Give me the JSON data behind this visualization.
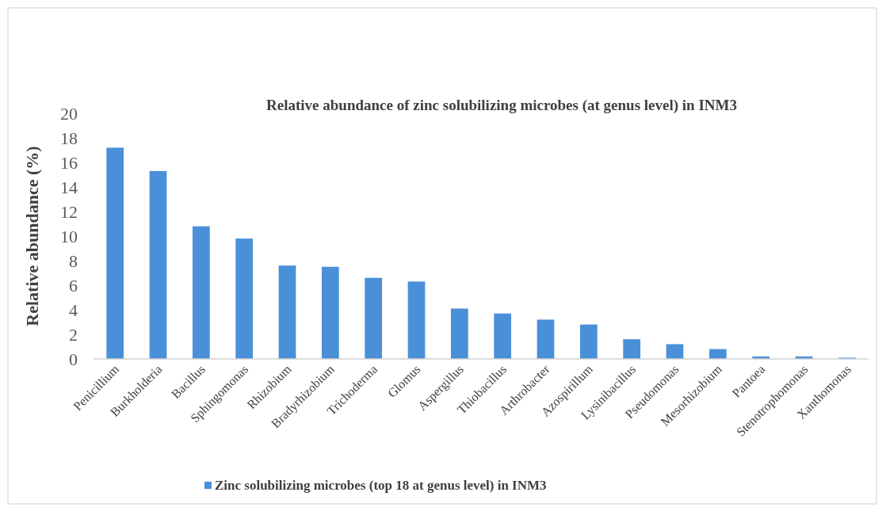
{
  "chart_data": {
    "type": "bar",
    "title": "Relative abundance of zinc solubilizing microbes (at genus level) in INM3",
    "ylabel": "Relative abundance (%)",
    "categories": [
      "Penicillium",
      "Burkholderia",
      "Bacillus",
      "Sphingomonas",
      "Rhizobium",
      "Bradyrhizobium",
      "Trichoderma",
      "Glomus",
      "Aspergillus",
      "Thiobacillus",
      "Arthrobacter",
      "Azospirillum",
      "Lysinibacillus",
      "Pseudomonas",
      "Mesorhizobium",
      "Pantoea",
      "Stenotrophomonas",
      "Xanthomonas"
    ],
    "series": [
      {
        "name": "Zinc solubilizing microbes (top 18 at genus level) in INM3",
        "color": "#4a90d9",
        "values": [
          17.2,
          15.3,
          10.8,
          9.8,
          7.6,
          7.5,
          6.6,
          6.3,
          4.1,
          3.7,
          3.2,
          2.8,
          1.6,
          1.2,
          0.8,
          0.2,
          0.2,
          0.1
        ]
      }
    ],
    "ylim": [
      0,
      20
    ],
    "yticks": [
      0,
      2,
      4,
      6,
      8,
      10,
      12,
      14,
      16,
      18,
      20
    ],
    "grid": false,
    "legend": "bottom left"
  }
}
